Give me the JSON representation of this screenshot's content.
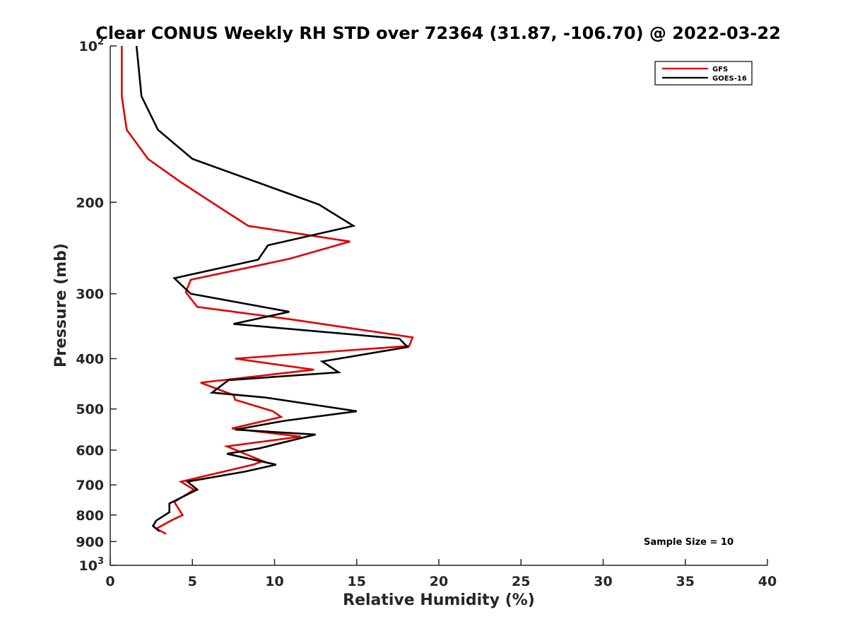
{
  "chart_data": {
    "type": "line",
    "title": "Clear CONUS Weekly RH STD over 72364 (31.87, -106.70) @ 2022-03-22",
    "xlabel": "Relative Humidity (%)",
    "ylabel": "Pressure (mb)",
    "xlim": [
      0,
      40
    ],
    "ylim": [
      100,
      1000
    ],
    "y_scale": "log",
    "y_reversed": true,
    "x_ticks": [
      "0",
      "5",
      "10",
      "15",
      "20",
      "25",
      "30",
      "35",
      "40"
    ],
    "y_ticks": [
      {
        "value": 100,
        "base": "10",
        "exp": "2"
      },
      {
        "value": 200,
        "label": "200"
      },
      {
        "value": 300,
        "label": "300"
      },
      {
        "value": 400,
        "label": "400"
      },
      {
        "value": 500,
        "label": "500"
      },
      {
        "value": 600,
        "label": "600"
      },
      {
        "value": 700,
        "label": "700"
      },
      {
        "value": 800,
        "label": "800"
      },
      {
        "value": 900,
        "label": "900"
      },
      {
        "value": 1000,
        "base": "10",
        "exp": "3"
      }
    ],
    "grid": false,
    "legend_position": "top-right",
    "series": [
      {
        "name": "GFS",
        "color": "#e00000",
        "points": [
          [
            0.7,
            100
          ],
          [
            0.7,
            125
          ],
          [
            1.0,
            145
          ],
          [
            2.3,
            165
          ],
          [
            4.3,
            183
          ],
          [
            6.6,
            204
          ],
          [
            8.4,
            222
          ],
          [
            14.6,
            238
          ],
          [
            10.9,
            257
          ],
          [
            4.9,
            282
          ],
          [
            4.6,
            298
          ],
          [
            5.3,
            318
          ],
          [
            11.0,
            336
          ],
          [
            18.4,
            364
          ],
          [
            18.2,
            378
          ],
          [
            7.6,
            400
          ],
          [
            12.4,
            420
          ],
          [
            5.5,
            445
          ],
          [
            7.5,
            470
          ],
          [
            7.6,
            480
          ],
          [
            9.9,
            505
          ],
          [
            10.4,
            518
          ],
          [
            7.4,
            545
          ],
          [
            11.6,
            565
          ],
          [
            7.1,
            590
          ],
          [
            8.2,
            610
          ],
          [
            9.3,
            630
          ],
          [
            8.7,
            640
          ],
          [
            4.3,
            690
          ],
          [
            5.1,
            715
          ],
          [
            3.9,
            755
          ],
          [
            4.4,
            800
          ],
          [
            3.7,
            820
          ],
          [
            2.8,
            850
          ],
          [
            3.4,
            870
          ]
        ]
      },
      {
        "name": "GOES-16",
        "color": "#000000",
        "points": [
          [
            1.6,
            100
          ],
          [
            1.9,
            125
          ],
          [
            2.9,
            145
          ],
          [
            5.0,
            165
          ],
          [
            12.7,
            202
          ],
          [
            14.8,
            222
          ],
          [
            9.6,
            242
          ],
          [
            9.0,
            258
          ],
          [
            3.9,
            280
          ],
          [
            4.9,
            300
          ],
          [
            10.9,
            325
          ],
          [
            7.5,
            343
          ],
          [
            17.6,
            366
          ],
          [
            18.1,
            380
          ],
          [
            12.9,
            405
          ],
          [
            13.9,
            425
          ],
          [
            7.2,
            440
          ],
          [
            6.2,
            465
          ],
          [
            9.4,
            475
          ],
          [
            15.0,
            505
          ],
          [
            10.6,
            527
          ],
          [
            7.6,
            548
          ],
          [
            12.5,
            560
          ],
          [
            9.1,
            595
          ],
          [
            7.1,
            610
          ],
          [
            9.6,
            635
          ],
          [
            10.1,
            640
          ],
          [
            8.2,
            660
          ],
          [
            4.7,
            690
          ],
          [
            5.3,
            715
          ],
          [
            3.6,
            760
          ],
          [
            3.6,
            790
          ],
          [
            2.8,
            820
          ],
          [
            2.6,
            840
          ],
          [
            3.0,
            860
          ]
        ]
      }
    ],
    "annotation": "Sample Size = 10"
  }
}
